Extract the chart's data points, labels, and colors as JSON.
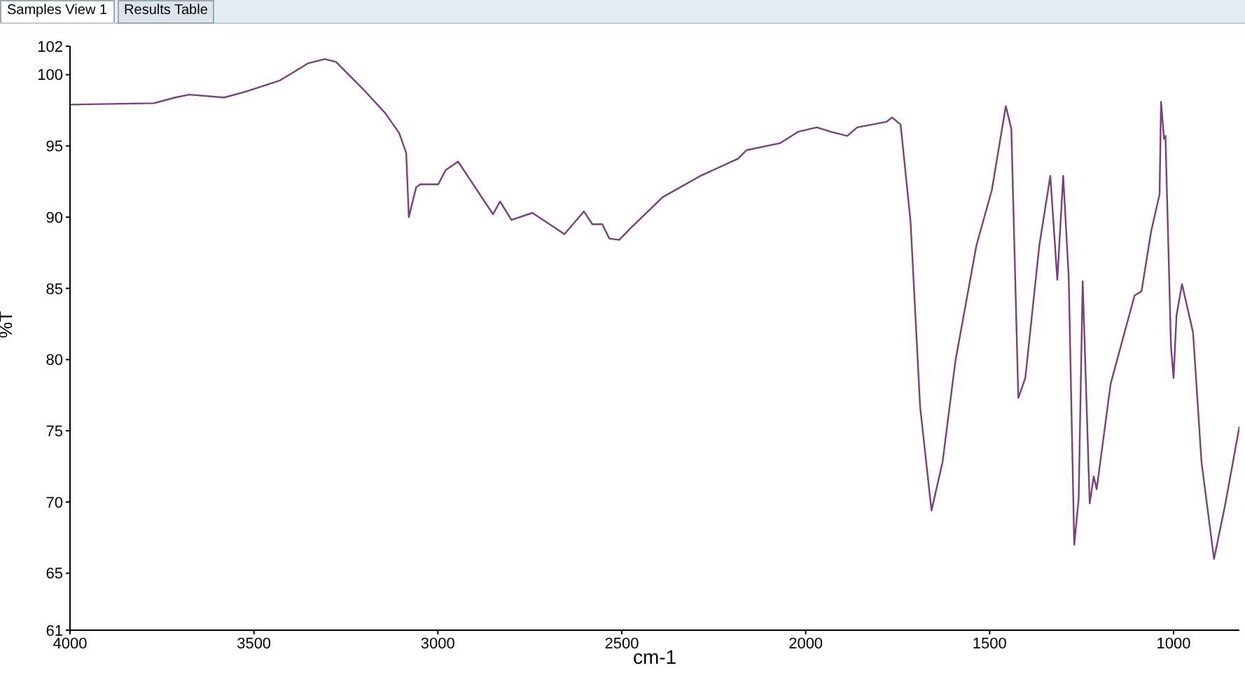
{
  "chart_data": {
    "type": "line",
    "xlabel": "cm-1",
    "ylabel": "%T",
    "annotations": [
      "Samples View 1",
      "Results Table"
    ],
    "xlim": [
      4000,
      821
    ],
    "xticks": [
      4000,
      3500,
      3000,
      2500,
      2000,
      1500,
      1000
    ],
    "ylim": [
      61,
      102
    ],
    "yticks": [
      61,
      65,
      70,
      75,
      80,
      85,
      90,
      95,
      100,
      102
    ],
    "grid": false,
    "legend": false,
    "marker": "none",
    "line_style": "solid",
    "series": [
      {
        "color": "#7b3f7f",
        "x": [
          4000,
          3772,
          3714,
          3676,
          3581,
          3524,
          3429,
          3353,
          3307,
          3277,
          3200,
          3143,
          3105,
          3086,
          3079,
          3059,
          3048,
          2999,
          2979,
          2945,
          2850,
          2831,
          2800,
          2743,
          2679,
          2656,
          2603,
          2580,
          2553,
          2534,
          2507,
          2477,
          2389,
          2286,
          2184,
          2161,
          2069,
          2020,
          1970,
          1932,
          1887,
          1860,
          1780,
          1765,
          1742,
          1715,
          1689,
          1658,
          1628,
          1593,
          1536,
          1494,
          1456,
          1441,
          1422,
          1403,
          1365,
          1335,
          1316,
          1300,
          1285,
          1270,
          1258,
          1247,
          1228,
          1217,
          1209,
          1171,
          1106,
          1087,
          1061,
          1038,
          1034,
          1026,
          1022,
          1007,
          1000,
          992,
          977,
          947,
          924,
          890,
          859,
          821
        ],
        "values": [
          97.9,
          98.0,
          98.4,
          98.6,
          98.4,
          98.8,
          99.6,
          100.8,
          101.1,
          100.9,
          98.9,
          97.3,
          95.9,
          94.5,
          90.0,
          92.1,
          92.3,
          92.3,
          93.3,
          93.9,
          90.2,
          91.1,
          89.8,
          90.3,
          89.2,
          88.8,
          90.4,
          89.5,
          89.5,
          88.5,
          88.4,
          89.2,
          91.4,
          92.9,
          94.1,
          94.7,
          95.2,
          96.0,
          96.3,
          96.0,
          95.7,
          96.3,
          96.7,
          97.0,
          96.5,
          89.7,
          76.7,
          69.4,
          72.8,
          79.9,
          88.0,
          91.9,
          97.8,
          96.2,
          77.3,
          78.7,
          88.0,
          92.9,
          85.6,
          92.9,
          85.8,
          67.0,
          70.2,
          85.5,
          69.9,
          71.8,
          70.9,
          78.3,
          84.5,
          84.8,
          89.0,
          91.6,
          98.1,
          95.5,
          95.7,
          80.9,
          78.7,
          83.1,
          85.3,
          81.9,
          72.8,
          66.0,
          69.9,
          75.3
        ]
      }
    ]
  }
}
